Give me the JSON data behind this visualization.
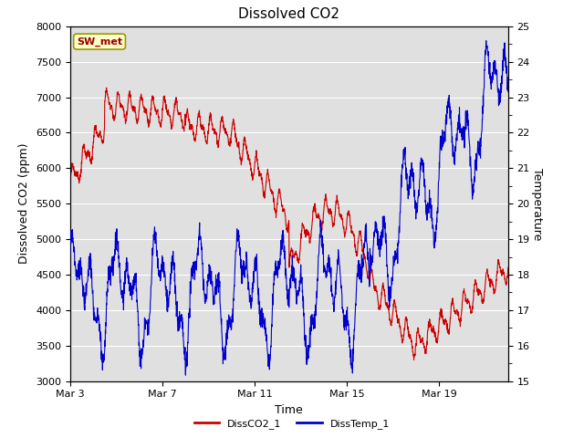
{
  "title": "Dissolved CO2",
  "xlabel": "Time",
  "ylabel_left": "Dissolved CO2 (ppm)",
  "ylabel_right": "Temperature",
  "ylim_left": [
    3000,
    8000
  ],
  "ylim_right": [
    15.0,
    25.0
  ],
  "yticks_left": [
    3000,
    3500,
    4000,
    4500,
    5000,
    5500,
    6000,
    6500,
    7000,
    7500,
    8000
  ],
  "yticks_right": [
    15.0,
    16.0,
    17.0,
    18.0,
    19.0,
    20.0,
    21.0,
    22.0,
    23.0,
    24.0,
    25.0
  ],
  "xtick_labels": [
    "Mar 3",
    "Mar 7",
    "Mar 11",
    "Mar 15",
    "Mar 19"
  ],
  "xtick_positions": [
    0,
    4,
    8,
    12,
    16
  ],
  "xlim": [
    0,
    19
  ],
  "tag_label": "SW_met",
  "tag_bg": "#ffffcc",
  "tag_border": "#999900",
  "tag_text_color": "#990000",
  "co2_color": "#cc0000",
  "temp_color": "#0000cc",
  "legend_labels": [
    "DissCO2_1",
    "DissTemp_1"
  ],
  "bg_color": "#e0e0e0",
  "grid_color": "#ffffff",
  "title_fontsize": 11,
  "axis_fontsize": 9,
  "tick_fontsize": 8,
  "tag_fontsize": 8,
  "legend_fontsize": 8
}
